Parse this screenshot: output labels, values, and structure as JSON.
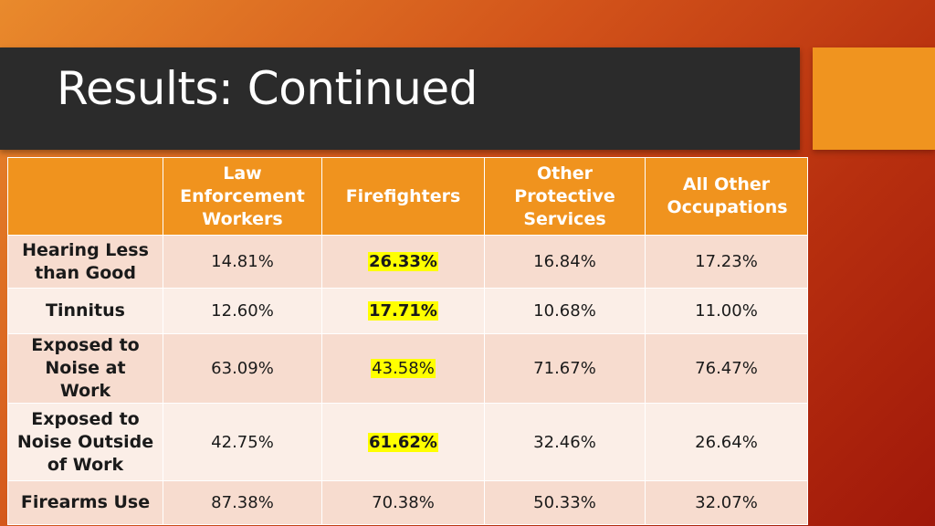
{
  "slide": {
    "title": "Results: Continued",
    "colors": {
      "header_fill": "#f0931e",
      "title_bar": "#2b2b2b",
      "highlight": "#ffff00"
    }
  },
  "table": {
    "columns": [
      "",
      "Law Enforcement Workers",
      "Firefighters",
      "Other Protective Services",
      "All Other Occupations"
    ],
    "rows": [
      {
        "label": "Hearing Less than Good",
        "values": [
          "14.81%",
          "26.33%",
          "16.84%",
          "17.23%"
        ],
        "highlighted": "26.33%"
      },
      {
        "label": "Tinnitus",
        "values": [
          "12.60%",
          "17.71%",
          "10.68%",
          "11.00%"
        ],
        "highlighted": "17.71%"
      },
      {
        "label": "Exposed to Noise at Work",
        "values": [
          "63.09%",
          "43.58%",
          "71.67%",
          "76.47%"
        ],
        "highlighted": "43.58%"
      },
      {
        "label": "Exposed to Noise Outside of Work",
        "values": [
          "42.75%",
          "61.62%",
          "32.46%",
          "26.64%"
        ],
        "highlighted": "61.62%"
      },
      {
        "label": "Firearms Use",
        "values": [
          "87.38%",
          "70.38%",
          "50.33%",
          "32.07%"
        ]
      }
    ]
  }
}
